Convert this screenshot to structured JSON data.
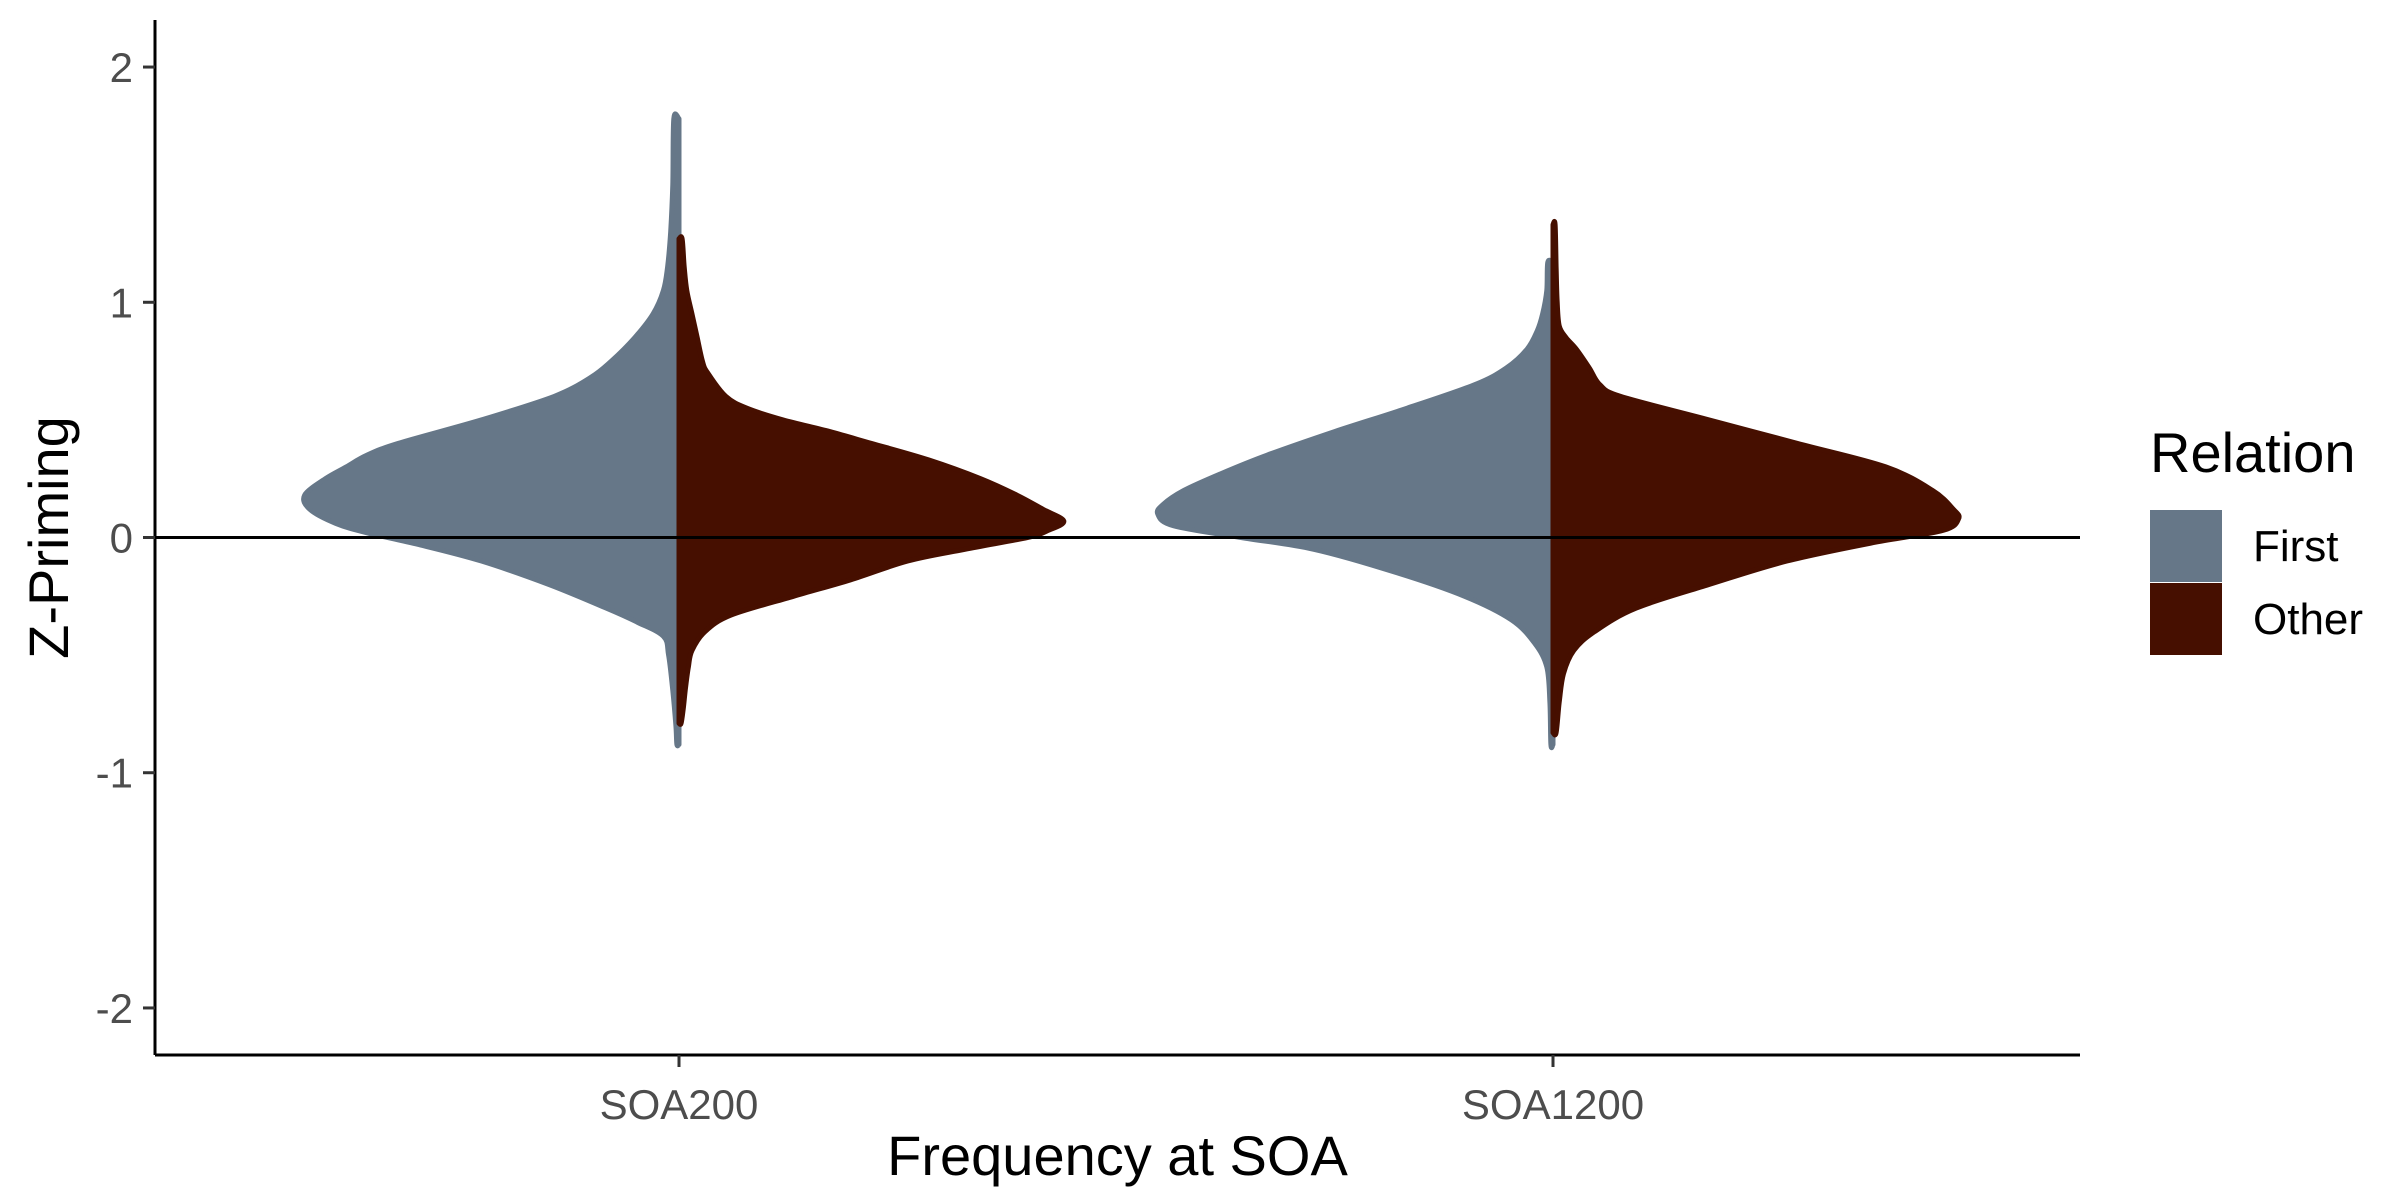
{
  "chart_data": {
    "type": "violin",
    "xlabel": "Frequency at SOA",
    "ylabel": "Z-Priming",
    "categories": [
      "SOA200",
      "SOA1200"
    ],
    "ylim": [
      -2.2,
      2.2
    ],
    "yticks": [
      -2,
      -1,
      0,
      1,
      2
    ],
    "yticks_labels": [
      "-2",
      "-1",
      "0",
      "1",
      "2"
    ],
    "reference_line_y": 0,
    "grid": false,
    "legend": {
      "title": "Relation",
      "position": "right",
      "entries": [
        {
          "label": "First",
          "color": "#667788"
        },
        {
          "label": "Other",
          "color": "#460F00"
        }
      ]
    },
    "series": [
      {
        "name": "First",
        "color": "#667788",
        "side": "left",
        "violins": [
          {
            "category": "SOA200",
            "profile": [
              {
                "y": 1.78,
                "w": 0.01
              },
              {
                "y": 1.5,
                "w": 0.012
              },
              {
                "y": 1.3,
                "w": 0.016
              },
              {
                "y": 1.15,
                "w": 0.022
              },
              {
                "y": 1.05,
                "w": 0.03
              },
              {
                "y": 0.95,
                "w": 0.05
              },
              {
                "y": 0.85,
                "w": 0.085
              },
              {
                "y": 0.75,
                "w": 0.13
              },
              {
                "y": 0.68,
                "w": 0.17
              },
              {
                "y": 0.6,
                "w": 0.24
              },
              {
                "y": 0.5,
                "w": 0.38
              },
              {
                "y": 0.4,
                "w": 0.54
              },
              {
                "y": 0.35,
                "w": 0.6
              },
              {
                "y": 0.3,
                "w": 0.64
              },
              {
                "y": 0.25,
                "w": 0.68
              },
              {
                "y": 0.18,
                "w": 0.72
              },
              {
                "y": 0.12,
                "w": 0.71
              },
              {
                "y": 0.06,
                "w": 0.66
              },
              {
                "y": 0.02,
                "w": 0.6
              },
              {
                "y": -0.03,
                "w": 0.5
              },
              {
                "y": -0.1,
                "w": 0.38
              },
              {
                "y": -0.2,
                "w": 0.25
              },
              {
                "y": -0.3,
                "w": 0.14
              },
              {
                "y": -0.36,
                "w": 0.08
              },
              {
                "y": -0.42,
                "w": 0.03
              },
              {
                "y": -0.5,
                "w": 0.02
              },
              {
                "y": -0.65,
                "w": 0.012
              },
              {
                "y": -0.8,
                "w": 0.006
              },
              {
                "y": -0.88,
                "w": 0.004
              }
            ]
          },
          {
            "category": "SOA1200",
            "profile": [
              {
                "y": 1.17,
                "w": 0.01
              },
              {
                "y": 1.05,
                "w": 0.012
              },
              {
                "y": 0.95,
                "w": 0.02
              },
              {
                "y": 0.88,
                "w": 0.03
              },
              {
                "y": 0.8,
                "w": 0.05
              },
              {
                "y": 0.72,
                "w": 0.09
              },
              {
                "y": 0.65,
                "w": 0.15
              },
              {
                "y": 0.55,
                "w": 0.28
              },
              {
                "y": 0.45,
                "w": 0.42
              },
              {
                "y": 0.35,
                "w": 0.55
              },
              {
                "y": 0.27,
                "w": 0.64
              },
              {
                "y": 0.2,
                "w": 0.71
              },
              {
                "y": 0.14,
                "w": 0.75
              },
              {
                "y": 0.1,
                "w": 0.76
              },
              {
                "y": 0.05,
                "w": 0.73
              },
              {
                "y": 0.0,
                "w": 0.6
              },
              {
                "y": -0.05,
                "w": 0.46
              },
              {
                "y": -0.15,
                "w": 0.3
              },
              {
                "y": -0.25,
                "w": 0.17
              },
              {
                "y": -0.35,
                "w": 0.08
              },
              {
                "y": -0.45,
                "w": 0.035
              },
              {
                "y": -0.55,
                "w": 0.012
              },
              {
                "y": -0.7,
                "w": 0.006
              },
              {
                "y": -0.88,
                "w": 0.004
              }
            ]
          }
        ]
      },
      {
        "name": "Other",
        "color": "#460F00",
        "side": "right",
        "violins": [
          {
            "category": "SOA200",
            "profile": [
              {
                "y": 1.27,
                "w": 0.006
              },
              {
                "y": 1.15,
                "w": 0.01
              },
              {
                "y": 1.05,
                "w": 0.015
              },
              {
                "y": 0.95,
                "w": 0.025
              },
              {
                "y": 0.85,
                "w": 0.035
              },
              {
                "y": 0.75,
                "w": 0.045
              },
              {
                "y": 0.7,
                "w": 0.055
              },
              {
                "y": 0.6,
                "w": 0.09
              },
              {
                "y": 0.55,
                "w": 0.13
              },
              {
                "y": 0.5,
                "w": 0.2
              },
              {
                "y": 0.45,
                "w": 0.29
              },
              {
                "y": 0.4,
                "w": 0.37
              },
              {
                "y": 0.33,
                "w": 0.48
              },
              {
                "y": 0.25,
                "w": 0.58
              },
              {
                "y": 0.18,
                "w": 0.65
              },
              {
                "y": 0.12,
                "w": 0.7
              },
              {
                "y": 0.07,
                "w": 0.74
              },
              {
                "y": 0.03,
                "w": 0.71
              },
              {
                "y": 0.0,
                "w": 0.67
              },
              {
                "y": -0.05,
                "w": 0.55
              },
              {
                "y": -0.1,
                "w": 0.44
              },
              {
                "y": -0.18,
                "w": 0.33
              },
              {
                "y": -0.25,
                "w": 0.22
              },
              {
                "y": -0.33,
                "w": 0.1
              },
              {
                "y": -0.4,
                "w": 0.05
              },
              {
                "y": -0.48,
                "w": 0.025
              },
              {
                "y": -0.55,
                "w": 0.018
              },
              {
                "y": -0.65,
                "w": 0.012
              },
              {
                "y": -0.73,
                "w": 0.008
              },
              {
                "y": -0.79,
                "w": 0.004
              }
            ]
          },
          {
            "category": "SOA1200",
            "profile": [
              {
                "y": 1.33,
                "w": 0.004
              },
              {
                "y": 1.15,
                "w": 0.006
              },
              {
                "y": 1.0,
                "w": 0.008
              },
              {
                "y": 0.9,
                "w": 0.012
              },
              {
                "y": 0.85,
                "w": 0.025
              },
              {
                "y": 0.8,
                "w": 0.045
              },
              {
                "y": 0.72,
                "w": 0.07
              },
              {
                "y": 0.65,
                "w": 0.09
              },
              {
                "y": 0.6,
                "w": 0.13
              },
              {
                "y": 0.5,
                "w": 0.3
              },
              {
                "y": 0.4,
                "w": 0.47
              },
              {
                "y": 0.3,
                "w": 0.64
              },
              {
                "y": 0.2,
                "w": 0.73
              },
              {
                "y": 0.12,
                "w": 0.77
              },
              {
                "y": 0.08,
                "w": 0.78
              },
              {
                "y": 0.03,
                "w": 0.75
              },
              {
                "y": -0.02,
                "w": 0.62
              },
              {
                "y": -0.1,
                "w": 0.45
              },
              {
                "y": -0.2,
                "w": 0.3
              },
              {
                "y": -0.3,
                "w": 0.16
              },
              {
                "y": -0.4,
                "w": 0.08
              },
              {
                "y": -0.48,
                "w": 0.04
              },
              {
                "y": -0.58,
                "w": 0.02
              },
              {
                "y": -0.7,
                "w": 0.012
              },
              {
                "y": -0.83,
                "w": 0.006
              }
            ]
          }
        ]
      }
    ]
  }
}
